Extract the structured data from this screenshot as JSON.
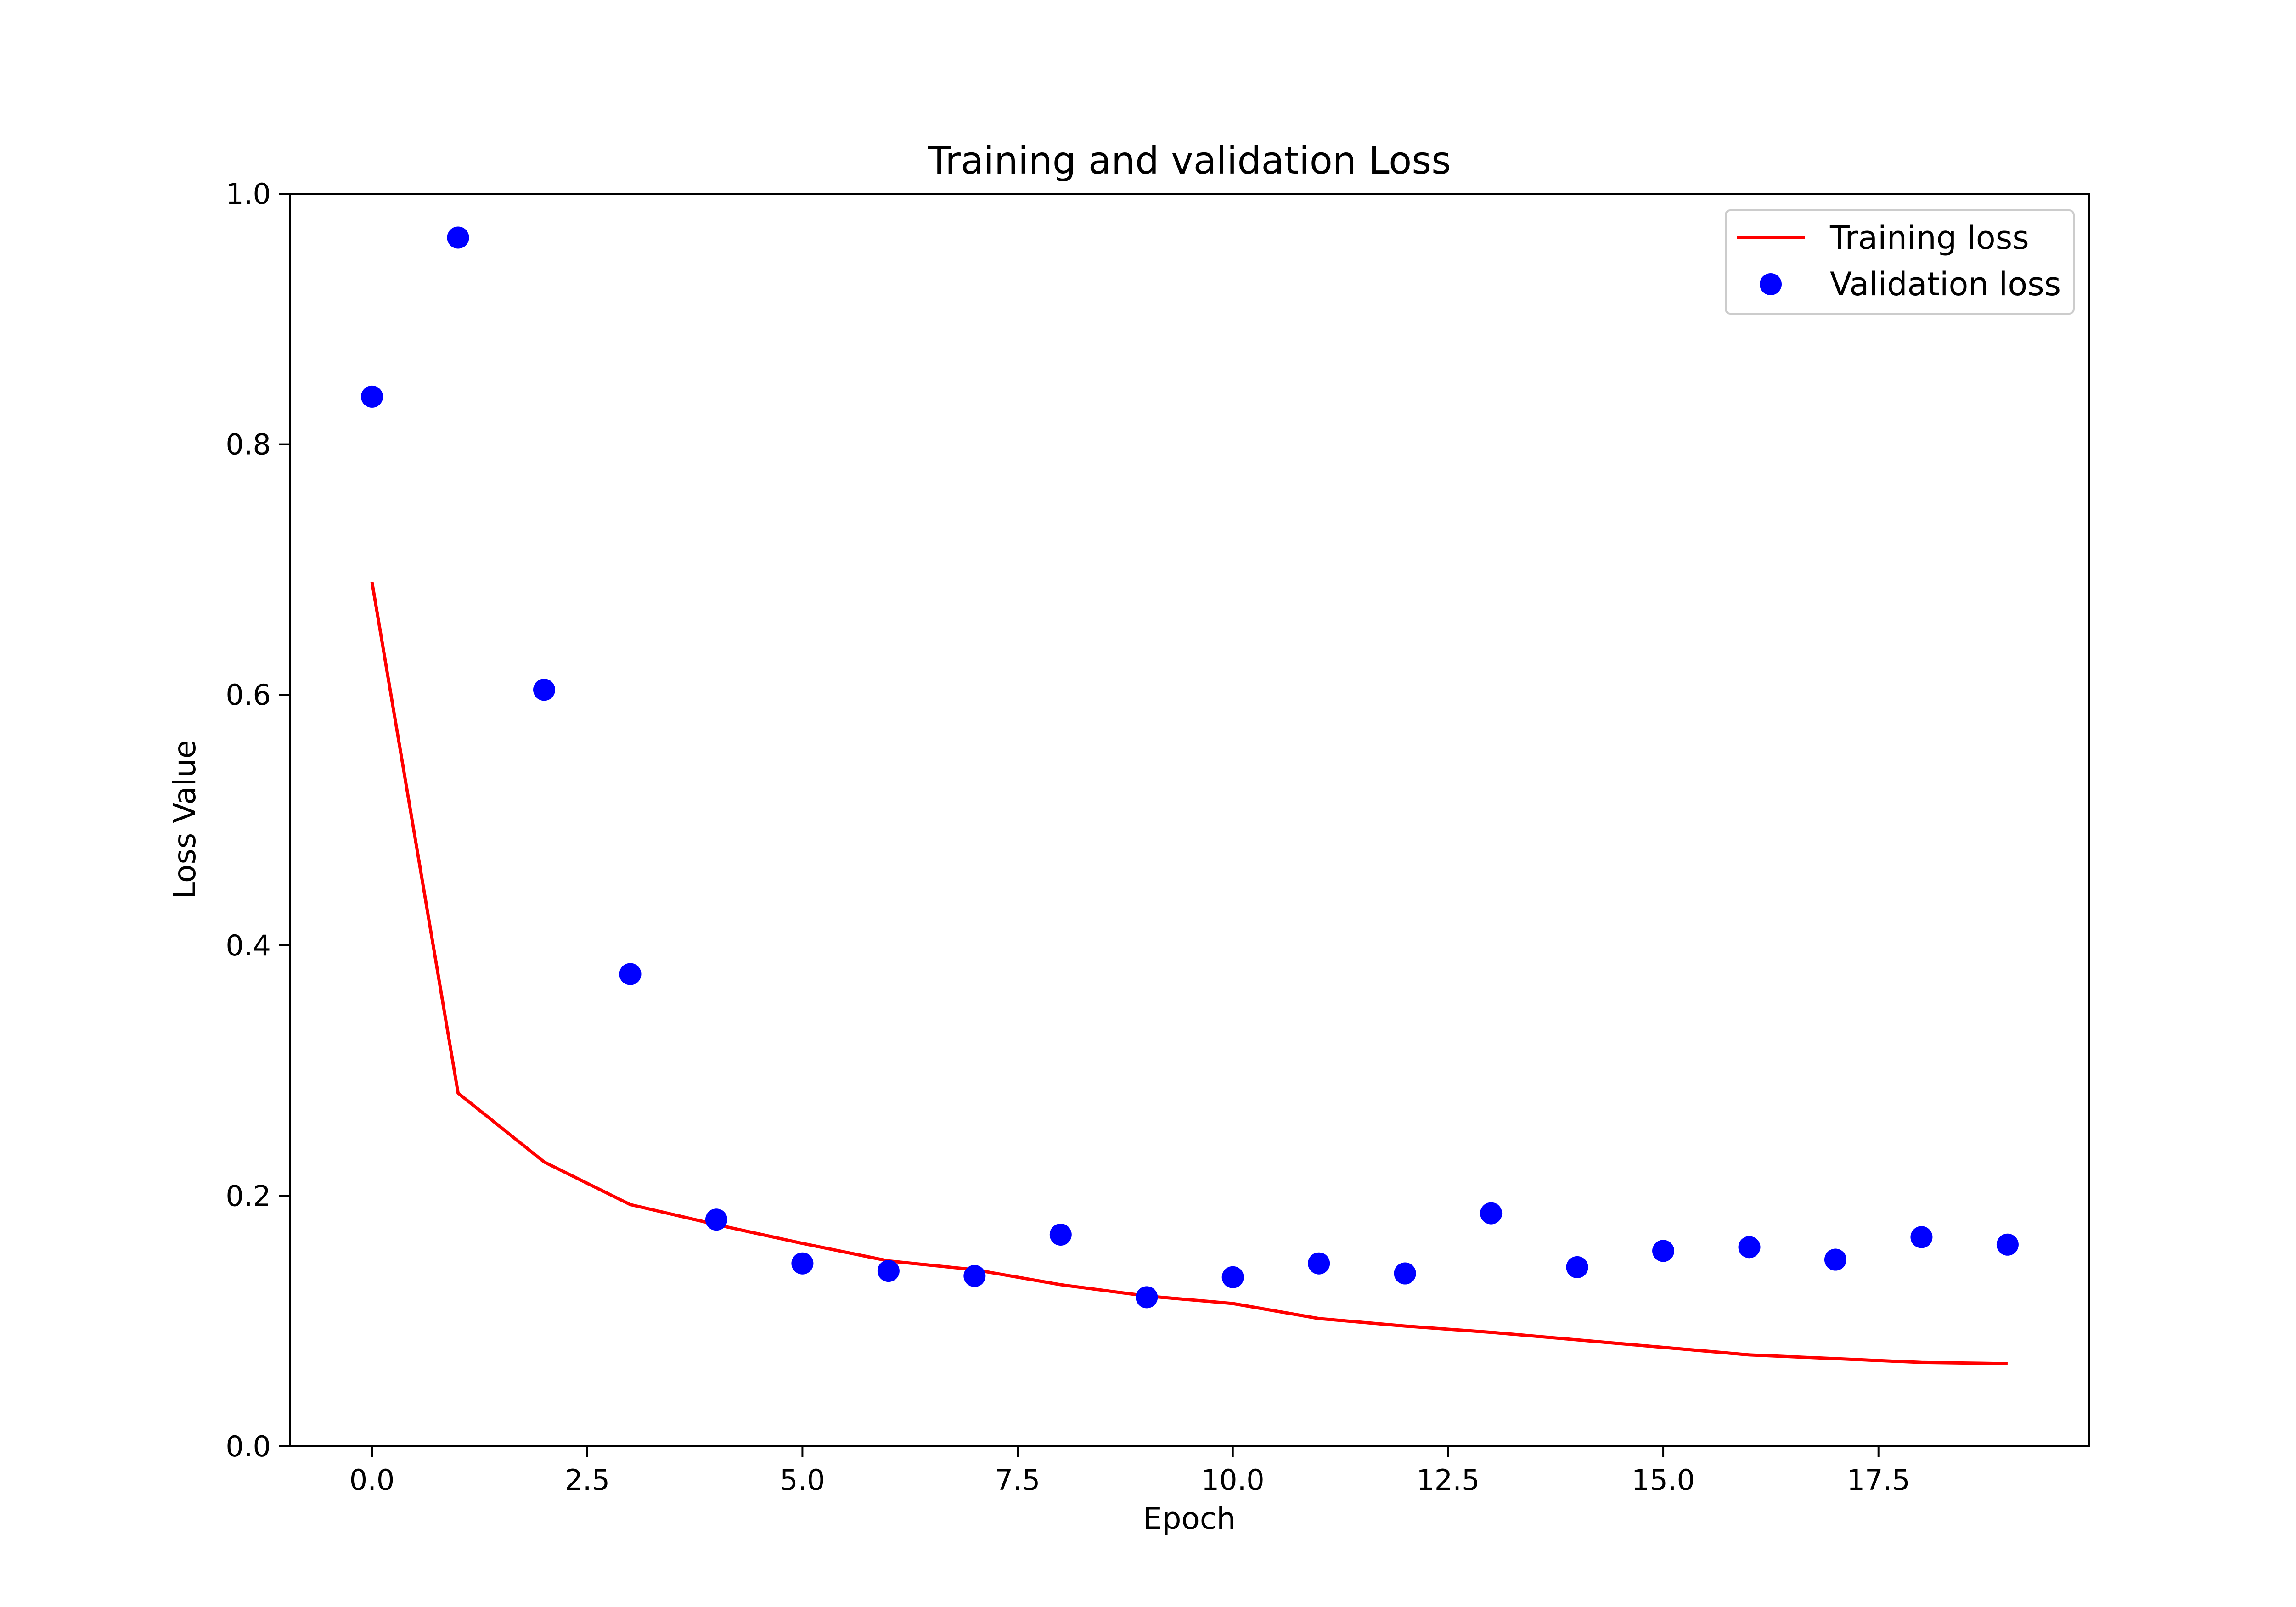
{
  "chart_data": {
    "type": "line",
    "title": "Training and validation Loss",
    "xlabel": "Epoch",
    "ylabel": "Loss Value",
    "xlim": [
      -0.95,
      19.95
    ],
    "ylim": [
      0.0,
      1.0
    ],
    "xticks": [
      0.0,
      2.5,
      5.0,
      7.5,
      10.0,
      12.5,
      15.0,
      17.5
    ],
    "xtick_labels": [
      "0.0",
      "2.5",
      "5.0",
      "7.5",
      "10.0",
      "12.5",
      "15.0",
      "17.5"
    ],
    "yticks": [
      0.0,
      0.2,
      0.4,
      0.6,
      0.8,
      1.0
    ],
    "ytick_labels": [
      "0.0",
      "0.2",
      "0.4",
      "0.6",
      "0.8",
      "1.0"
    ],
    "grid": false,
    "legend_position": "top-right",
    "x": [
      0,
      1,
      2,
      3,
      4,
      5,
      6,
      7,
      8,
      9,
      10,
      11,
      12,
      13,
      14,
      15,
      16,
      17,
      18,
      19
    ],
    "series": [
      {
        "name": "Training loss",
        "style": "line",
        "color": "#ff0000",
        "values": [
          0.69,
          0.282,
          0.227,
          0.193,
          0.177,
          0.162,
          0.148,
          0.141,
          0.129,
          0.12,
          0.114,
          0.102,
          0.096,
          0.091,
          0.085,
          0.079,
          0.073,
          0.07,
          0.067,
          0.066
        ]
      },
      {
        "name": "Validation loss",
        "style": "marker",
        "color": "#0000ff",
        "values": [
          0.838,
          0.965,
          0.604,
          0.377,
          0.181,
          0.146,
          0.14,
          0.136,
          0.169,
          0.119,
          0.135,
          0.146,
          0.138,
          0.186,
          0.143,
          0.156,
          0.159,
          0.149,
          0.167,
          0.161
        ]
      }
    ]
  }
}
